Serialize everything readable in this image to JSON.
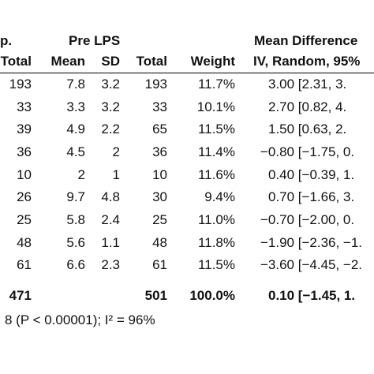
{
  "header": {
    "group_left_fragment": "p.",
    "group_pre": "Pre LPS",
    "group_effect": "Mean Difference",
    "col_total_left": "Total",
    "col_mean": "Mean",
    "col_sd": "SD",
    "col_total": "Total",
    "col_weight": "Weight",
    "col_effect": "IV, Random, 95%"
  },
  "rows": [
    {
      "total_left": "193",
      "mean": "7.8",
      "sd": "3.2",
      "total": "193",
      "weight": "11.7%",
      "md": "3.00 [2.31, 3."
    },
    {
      "total_left": "33",
      "mean": "3.3",
      "sd": "3.2",
      "total": "33",
      "weight": "10.1%",
      "md": "2.70 [0.82, 4."
    },
    {
      "total_left": "39",
      "mean": "4.9",
      "sd": "2.2",
      "total": "65",
      "weight": "11.5%",
      "md": "1.50 [0.63, 2."
    },
    {
      "total_left": "36",
      "mean": "4.5",
      "sd": "2",
      "total": "36",
      "weight": "11.4%",
      "md": "−0.80 [−1.75, 0."
    },
    {
      "total_left": "10",
      "mean": "2",
      "sd": "1",
      "total": "10",
      "weight": "11.6%",
      "md": "0.40 [−0.39, 1."
    },
    {
      "total_left": "26",
      "mean": "9.7",
      "sd": "4.8",
      "total": "30",
      "weight": "9.4%",
      "md": "0.70 [−1.66, 3."
    },
    {
      "total_left": "25",
      "mean": "5.8",
      "sd": "2.4",
      "total": "25",
      "weight": "11.0%",
      "md": "−0.70 [−2.00, 0."
    },
    {
      "total_left": "48",
      "mean": "5.6",
      "sd": "1.1",
      "total": "48",
      "weight": "11.8%",
      "md": "−1.90 [−2.36, −1."
    },
    {
      "total_left": "61",
      "mean": "6.6",
      "sd": "2.3",
      "total": "61",
      "weight": "11.5%",
      "md": "−3.60 [−4.45, −2."
    }
  ],
  "total_row": {
    "total_left": "471",
    "total": "501",
    "weight": "100.0%",
    "md": "0.10 [−1.45, 1."
  },
  "heterogeneity_text": "8 (P < 0.00001); I² = 96%"
}
